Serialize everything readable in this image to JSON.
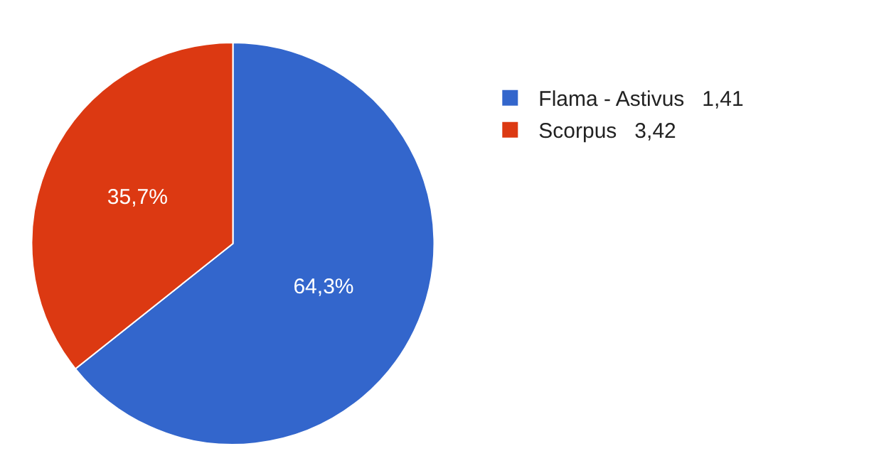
{
  "chart_data": {
    "type": "pie",
    "categories": [
      "Flama - Astivus   1,41",
      "Scorpus   3,42"
    ],
    "values": [
      64.3,
      35.7
    ],
    "colors": [
      "#3366cc",
      "#dc3912"
    ],
    "value_labels": [
      "64,3%",
      "35,7%"
    ],
    "legend": "right"
  }
}
